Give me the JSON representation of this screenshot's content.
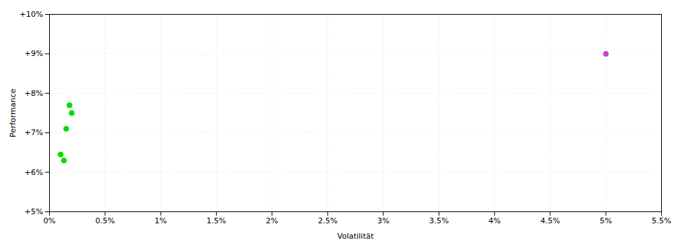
{
  "chart_data": {
    "type": "scatter",
    "xlabel": "Volatilität",
    "ylabel": "Performance",
    "xlim": [
      0.0,
      0.055
    ],
    "ylim": [
      0.05,
      0.1
    ],
    "xticks": [
      {
        "value": 0.0,
        "label": "0%"
      },
      {
        "value": 0.005,
        "label": "0.5%"
      },
      {
        "value": 0.01,
        "label": "1%"
      },
      {
        "value": 0.015,
        "label": "1.5%"
      },
      {
        "value": 0.02,
        "label": "2%"
      },
      {
        "value": 0.025,
        "label": "2.5%"
      },
      {
        "value": 0.03,
        "label": "3%"
      },
      {
        "value": 0.035,
        "label": "3.5%"
      },
      {
        "value": 0.04,
        "label": "4%"
      },
      {
        "value": 0.045,
        "label": "4.5%"
      },
      {
        "value": 0.05,
        "label": "5%"
      },
      {
        "value": 0.055,
        "label": "5.5%"
      }
    ],
    "yticks": [
      {
        "value": 0.05,
        "label": "+5%"
      },
      {
        "value": 0.06,
        "label": "+6%"
      },
      {
        "value": 0.07,
        "label": "+7%"
      },
      {
        "value": 0.08,
        "label": "+8%"
      },
      {
        "value": 0.09,
        "label": "+9%"
      },
      {
        "value": 0.1,
        "label": "+10%"
      }
    ],
    "grid": true,
    "series": [
      {
        "color": "#00dd00",
        "x": [
          0.0018,
          0.002,
          0.0015,
          0.001,
          0.0013
        ],
        "values": [
          0.077,
          0.075,
          0.071,
          0.0645,
          0.063
        ]
      },
      {
        "color": "#cc44cc",
        "x": [
          0.05
        ],
        "values": [
          0.09
        ]
      }
    ]
  }
}
